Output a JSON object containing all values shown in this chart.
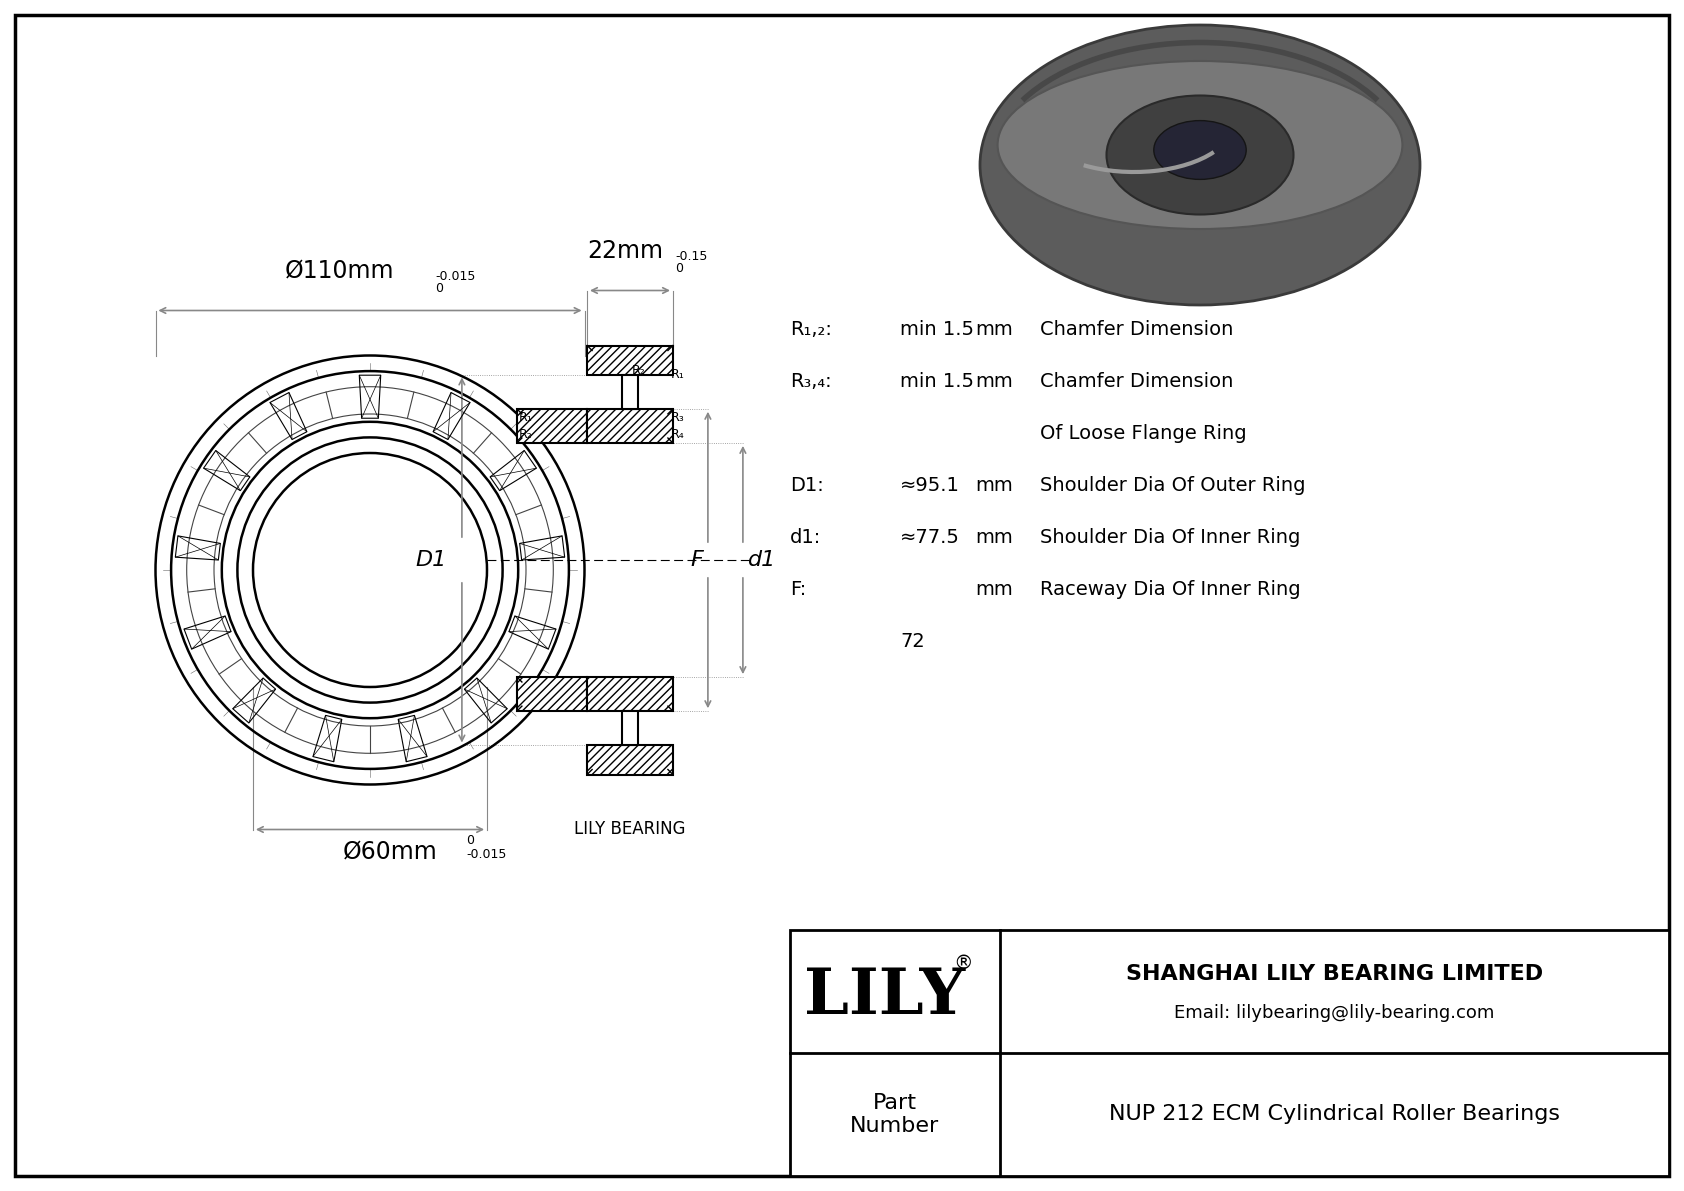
{
  "bg_color": "#ffffff",
  "border_color": "#000000",
  "line_color": "#000000",
  "dim_line_color": "#888888",
  "title_company": "SHANGHAI LILY BEARING LIMITED",
  "title_email": "Email: lilybearing@lily-bearing.com",
  "part_label": "Part\nNumber",
  "part_number": "NUP 212 ECM Cylindrical Roller Bearings",
  "brand": "LILY",
  "brand_registered": "®",
  "dim_outer": "Ø110mm",
  "dim_outer_tol_top": "0",
  "dim_outer_tol_bot": "-0.015",
  "dim_inner": "Ø60mm",
  "dim_inner_tol_top": "0",
  "dim_inner_tol_bot": "-0.015",
  "dim_width": "22mm",
  "dim_width_tol_top": "0",
  "dim_width_tol_bot": "-0.15",
  "label_D1": "D1",
  "label_d1": "d1",
  "label_F": "F",
  "label_R12": "R₁,₂:",
  "label_R34": "R₃,₄:",
  "val_R12": "min 1.5",
  "val_R34": "min 1.5",
  "unit_mm": "mm",
  "desc_R12": "Chamfer Dimension",
  "desc_R34": "Chamfer Dimension",
  "desc_R34_sub": "Of Loose Flange Ring",
  "label_D1_colon": "D1:",
  "val_D1": "≈95.1",
  "desc_D1": "Shoulder Dia Of Outer Ring",
  "label_d1_colon": "d1:",
  "val_d1": "≈77.5",
  "desc_d1": "Shoulder Dia Of Inner Ring",
  "label_F_colon": "F:",
  "val_F": "72",
  "desc_F": "Raceway Dia Of Inner Ring",
  "lily_bearing_label": "LILY BEARING"
}
